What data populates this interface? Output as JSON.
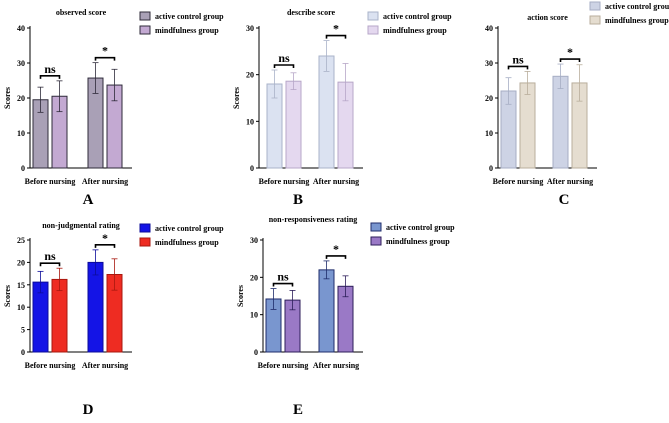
{
  "chart_data": [
    {
      "type": "bar",
      "title": "observed score",
      "panel_label": "A",
      "ylabel": "Scores",
      "ylim": [
        0,
        40
      ],
      "yticks": [
        0,
        10,
        20,
        30,
        40
      ],
      "categories": [
        "Before nursing",
        "After  nursing"
      ],
      "series": [
        {
          "name": "active control group",
          "values": [
            19.5,
            25.7
          ],
          "errors": [
            3.6,
            4.4
          ],
          "fill": "#a9a0b6",
          "stroke": "#2f2b3a"
        },
        {
          "name": "mindfulness group",
          "values": [
            20.5,
            23.7
          ],
          "errors": [
            4.4,
            4.5
          ],
          "fill": "#c3a9d2",
          "stroke": "#2f2b3a"
        }
      ],
      "significance": [
        "ns",
        "*"
      ]
    },
    {
      "type": "bar",
      "title": "describe score",
      "panel_label": "B",
      "ylabel": "Scores",
      "ylim": [
        0,
        30
      ],
      "yticks": [
        0,
        10,
        20,
        30
      ],
      "categories": [
        "Before nursing",
        "After  nursing"
      ],
      "series": [
        {
          "name": "active control group",
          "values": [
            18.0,
            24.0
          ],
          "errors": [
            3.0,
            3.3
          ],
          "fill": "#dbe2f1",
          "stroke": "#aab3c9"
        },
        {
          "name": "mindfulness group",
          "values": [
            18.6,
            18.4
          ],
          "errors": [
            1.8,
            4.0
          ],
          "fill": "#e4d8ef",
          "stroke": "#b7a7c8"
        }
      ],
      "significance": [
        "ns",
        "*"
      ]
    },
    {
      "type": "bar",
      "title": "action score",
      "panel_label": "C",
      "ylabel": "",
      "ylim": [
        0,
        40
      ],
      "yticks": [
        0,
        10,
        20,
        30,
        40
      ],
      "categories": [
        "Before nursing",
        "After  nursing"
      ],
      "series": [
        {
          "name": "active control group",
          "values": [
            22.0,
            26.2
          ],
          "errors": [
            3.8,
            3.5
          ],
          "fill": "#cdd3e5",
          "stroke": "#a6aec4"
        },
        {
          "name": "mindfulness group",
          "values": [
            24.3,
            24.3
          ],
          "errors": [
            3.3,
            5.2
          ],
          "fill": "#e5ddd0",
          "stroke": "#b9ae9c"
        }
      ],
      "significance": [
        "ns",
        "*"
      ]
    },
    {
      "type": "bar",
      "title": "non-judgmental rating",
      "panel_label": "D",
      "ylabel": "Scores",
      "ylim": [
        0,
        25
      ],
      "yticks": [
        0,
        5,
        10,
        15,
        20,
        25
      ],
      "categories": [
        "Before nursing",
        "After  nursing"
      ],
      "series": [
        {
          "name": "active control group",
          "values": [
            15.6,
            20.0
          ],
          "errors": [
            2.4,
            2.8
          ],
          "fill": "#1414e6",
          "stroke": "#0c0c9a"
        },
        {
          "name": "mindfulness group",
          "values": [
            16.2,
            17.3
          ],
          "errors": [
            2.5,
            3.5
          ],
          "fill": "#ee2c22",
          "stroke": "#a8180f"
        }
      ],
      "significance": [
        "ns",
        "*"
      ]
    },
    {
      "type": "bar",
      "title": "non-responsiveness rating",
      "panel_label": "E",
      "ylabel": "Scores",
      "ylim": [
        0,
        30
      ],
      "yticks": [
        0,
        10,
        20,
        30
      ],
      "categories": [
        "Before nursing",
        "After  nursing"
      ],
      "series": [
        {
          "name": "active control group",
          "values": [
            14.2,
            22.0
          ],
          "errors": [
            2.8,
            2.4
          ],
          "fill": "#7996cf",
          "stroke": "#1f2c6b"
        },
        {
          "name": "mindfulness group",
          "values": [
            13.9,
            17.6
          ],
          "errors": [
            2.6,
            2.8
          ],
          "fill": "#9a79c6",
          "stroke": "#2d1e5a"
        }
      ],
      "significance": [
        "ns",
        "*"
      ]
    }
  ]
}
